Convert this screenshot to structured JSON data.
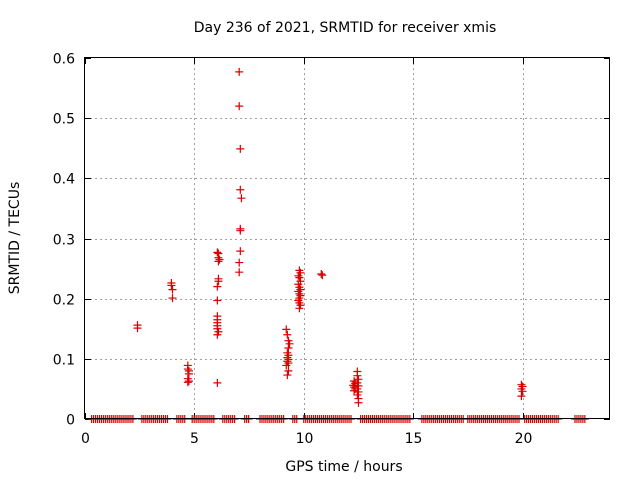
{
  "chart_data": {
    "type": "scatter",
    "title": "Day 236 of 2021, SRMTID for receiver xmis",
    "xlabel": "GPS time / hours",
    "ylabel": "SRMTID / TECUs",
    "xlim": [
      0,
      24
    ],
    "ylim": [
      0,
      0.6
    ],
    "xticks": [
      0,
      5,
      10,
      15,
      20
    ],
    "yticks": [
      0,
      0.1,
      0.2,
      0.3,
      0.4,
      0.5,
      0.6
    ],
    "xtick_labels": [
      "0",
      "5",
      "10",
      "15",
      "20"
    ],
    "ytick_labels": [
      "0",
      "0.1",
      "0.2",
      "0.3",
      "0.4",
      "0.5",
      "0.6"
    ],
    "grid": true,
    "marker": "+",
    "color": "#dd0000",
    "series": [
      {
        "name": "SRMTID",
        "points": [
          [
            2.4,
            0.156
          ],
          [
            2.4,
            0.151
          ],
          [
            3.95,
            0.226
          ],
          [
            3.95,
            0.222
          ],
          [
            4.0,
            0.215
          ],
          [
            4.0,
            0.201
          ],
          [
            4.7,
            0.089
          ],
          [
            4.7,
            0.083
          ],
          [
            4.75,
            0.08
          ],
          [
            4.75,
            0.075
          ],
          [
            4.7,
            0.067
          ],
          [
            4.75,
            0.063
          ],
          [
            4.7,
            0.061
          ],
          [
            6.05,
            0.06
          ],
          [
            6.05,
            0.277
          ],
          [
            6.1,
            0.275
          ],
          [
            6.1,
            0.268
          ],
          [
            6.15,
            0.265
          ],
          [
            6.1,
            0.262
          ],
          [
            6.1,
            0.233
          ],
          [
            6.1,
            0.229
          ],
          [
            6.05,
            0.22
          ],
          [
            6.05,
            0.197
          ],
          [
            6.05,
            0.171
          ],
          [
            6.05,
            0.165
          ],
          [
            6.05,
            0.16
          ],
          [
            6.05,
            0.155
          ],
          [
            6.05,
            0.15
          ],
          [
            6.1,
            0.145
          ],
          [
            6.05,
            0.14
          ],
          [
            7.05,
            0.577
          ],
          [
            7.05,
            0.52
          ],
          [
            7.1,
            0.449
          ],
          [
            7.1,
            0.381
          ],
          [
            7.15,
            0.367
          ],
          [
            7.1,
            0.316
          ],
          [
            7.1,
            0.313
          ],
          [
            7.1,
            0.279
          ],
          [
            7.05,
            0.26
          ],
          [
            7.05,
            0.244
          ],
          [
            9.2,
            0.149
          ],
          [
            9.25,
            0.14
          ],
          [
            9.3,
            0.13
          ],
          [
            9.35,
            0.125
          ],
          [
            9.3,
            0.118
          ],
          [
            9.25,
            0.11
          ],
          [
            9.3,
            0.106
          ],
          [
            9.25,
            0.102
          ],
          [
            9.3,
            0.099
          ],
          [
            9.25,
            0.096
          ],
          [
            9.3,
            0.093
          ],
          [
            9.2,
            0.089
          ],
          [
            9.3,
            0.08
          ],
          [
            9.25,
            0.073
          ],
          [
            9.8,
            0.247
          ],
          [
            9.85,
            0.243
          ],
          [
            9.75,
            0.238
          ],
          [
            9.8,
            0.235
          ],
          [
            9.85,
            0.229
          ],
          [
            9.75,
            0.224
          ],
          [
            9.8,
            0.219
          ],
          [
            9.85,
            0.215
          ],
          [
            9.75,
            0.212
          ],
          [
            9.8,
            0.208
          ],
          [
            9.85,
            0.205
          ],
          [
            9.8,
            0.201
          ],
          [
            9.75,
            0.197
          ],
          [
            9.8,
            0.193
          ],
          [
            9.85,
            0.189
          ],
          [
            9.8,
            0.184
          ],
          [
            10.8,
            0.241
          ],
          [
            10.85,
            0.239
          ],
          [
            12.3,
            0.063
          ],
          [
            12.35,
            0.059
          ],
          [
            12.25,
            0.056
          ],
          [
            12.3,
            0.053
          ],
          [
            12.35,
            0.05
          ],
          [
            12.3,
            0.047
          ],
          [
            12.45,
            0.079
          ],
          [
            12.45,
            0.072
          ],
          [
            12.5,
            0.066
          ],
          [
            12.45,
            0.06
          ],
          [
            12.5,
            0.055
          ],
          [
            12.45,
            0.05
          ],
          [
            12.5,
            0.045
          ],
          [
            12.45,
            0.04
          ],
          [
            12.5,
            0.034
          ],
          [
            12.5,
            0.027
          ],
          [
            19.95,
            0.057
          ],
          [
            20.0,
            0.054
          ],
          [
            19.95,
            0.05
          ],
          [
            20.0,
            0.046
          ],
          [
            19.95,
            0.038
          ]
        ],
        "zero_segments": [
          [
            0.3,
            2.2
          ],
          [
            2.6,
            3.8
          ],
          [
            4.2,
            4.6
          ],
          [
            4.9,
            5.9
          ],
          [
            6.3,
            6.9
          ],
          [
            7.3,
            7.5
          ],
          [
            8.0,
            9.1
          ],
          [
            9.5,
            9.7
          ],
          [
            10.0,
            12.2
          ],
          [
            12.6,
            14.9
          ],
          [
            15.4,
            17.3
          ],
          [
            17.5,
            19.9
          ],
          [
            20.1,
            21.7
          ],
          [
            22.4,
            22.9
          ]
        ]
      }
    ]
  }
}
